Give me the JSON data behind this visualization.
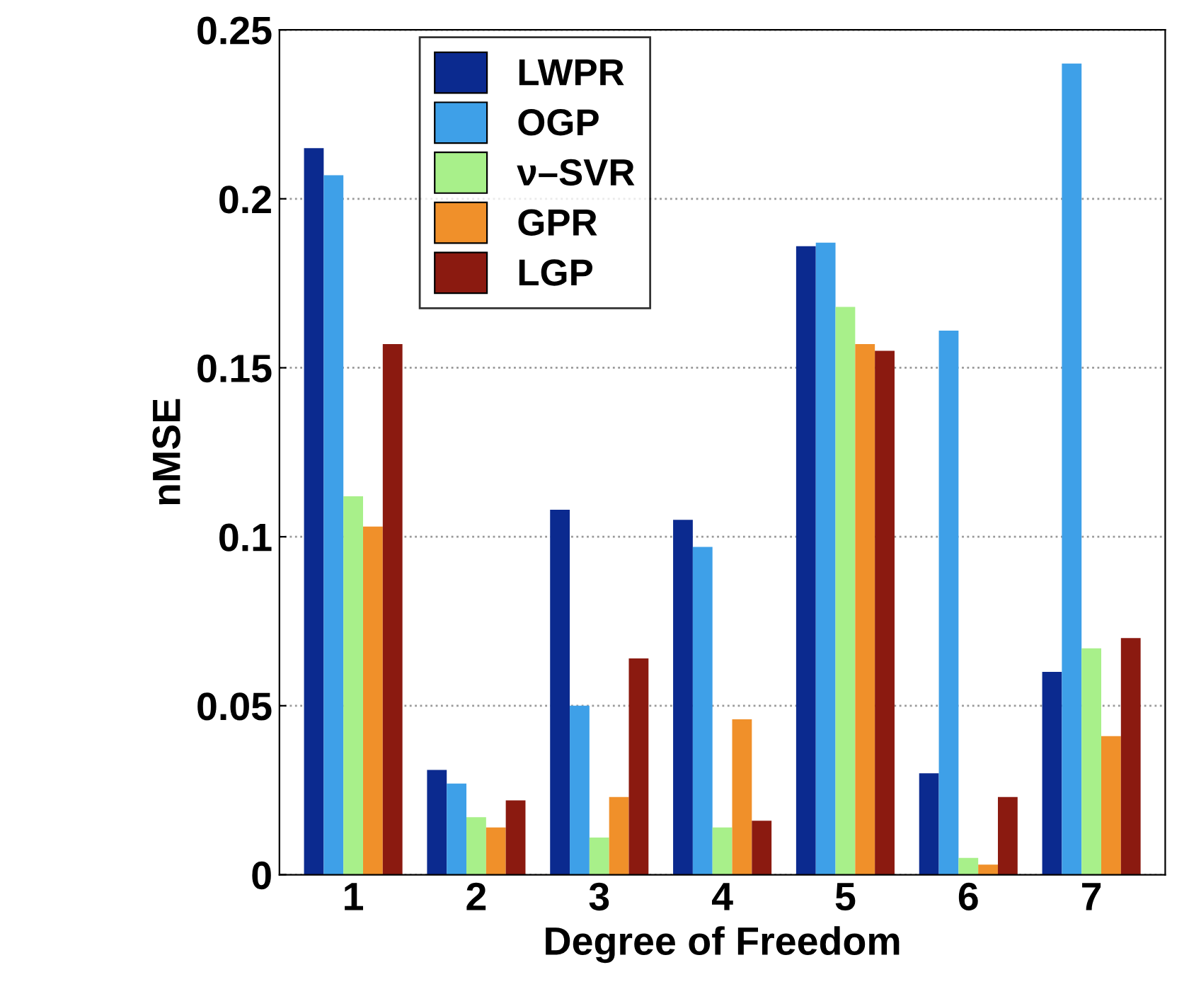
{
  "chart_data": {
    "type": "bar",
    "xlabel": "Degree of Freedom",
    "ylabel": "nMSE",
    "categories": [
      "1",
      "2",
      "3",
      "4",
      "5",
      "6",
      "7"
    ],
    "series": [
      {
        "name": "LWPR",
        "color": "#0b2a8f",
        "values": [
          0.215,
          0.031,
          0.108,
          0.105,
          0.186,
          0.03,
          0.06
        ]
      },
      {
        "name": "OGP",
        "color": "#3ea0e8",
        "values": [
          0.207,
          0.027,
          0.05,
          0.097,
          0.187,
          0.161,
          0.24
        ]
      },
      {
        "name": "ν–SVR",
        "color": "#a8f08a",
        "values": [
          0.112,
          0.017,
          0.011,
          0.014,
          0.168,
          0.005,
          0.067
        ]
      },
      {
        "name": "GPR",
        "color": "#f0902a",
        "values": [
          0.103,
          0.014,
          0.023,
          0.046,
          0.157,
          0.003,
          0.041
        ]
      },
      {
        "name": "LGP",
        "color": "#8b1a10",
        "values": [
          0.157,
          0.022,
          0.064,
          0.016,
          0.155,
          0.023,
          0.07
        ]
      }
    ],
    "ylim": [
      0,
      0.25
    ],
    "yticks": [
      0,
      0.05,
      0.1,
      0.15,
      0.2,
      0.25
    ],
    "grid": "y",
    "legend": "top"
  }
}
